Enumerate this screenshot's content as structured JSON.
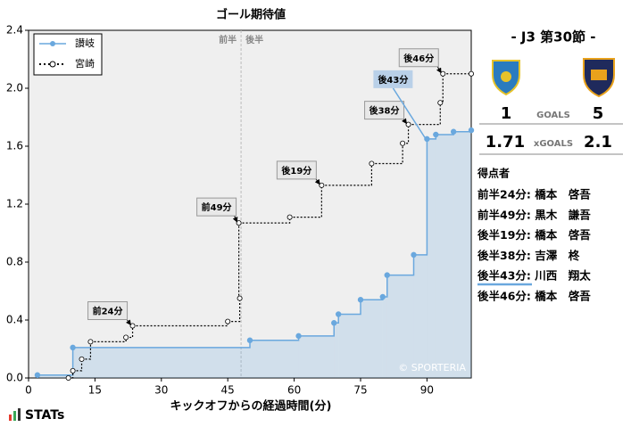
{
  "chart_data": {
    "type": "step",
    "title": "ゴール期待値",
    "x_label": "キックオフからの経過時間(分)",
    "xlim": [
      0,
      100
    ],
    "ylim": [
      0,
      2.4
    ],
    "xticks": [
      0,
      15,
      30,
      45,
      60,
      75,
      90
    ],
    "yticks": [
      {
        "value": 0,
        "label": "0.0"
      },
      {
        "value": 0.4,
        "label": "0.4"
      },
      {
        "value": 0.8,
        "label": "0.8"
      },
      {
        "value": 1.2,
        "label": "1.2"
      },
      {
        "value": 1.6,
        "label": "1.6"
      },
      {
        "value": 2.0,
        "label": "2.0"
      },
      {
        "value": 2.4,
        "label": "2.4"
      }
    ],
    "grid": false,
    "halftime": {
      "x": 48,
      "labels": [
        "前半",
        "後半"
      ]
    },
    "series": [
      {
        "name": "讃岐",
        "color": "#6aa8de",
        "area": true,
        "x": [
          2,
          10,
          50,
          61,
          69,
          70,
          75,
          80,
          81,
          87,
          90,
          92,
          96,
          100
        ],
        "values": [
          0.02,
          0.21,
          0.26,
          0.29,
          0.38,
          0.44,
          0.54,
          0.56,
          0.71,
          0.85,
          1.65,
          1.68,
          1.7,
          1.71
        ]
      },
      {
        "name": "宮崎",
        "color": "#000000",
        "area": false,
        "x": [
          9,
          10,
          12,
          14,
          22,
          23.5,
          45,
          47.7,
          47.5,
          59,
          66.2,
          77.5,
          84.5,
          85.8,
          93,
          93.6,
          100
        ],
        "values": [
          0.0,
          0.05,
          0.13,
          0.25,
          0.28,
          0.36,
          0.39,
          0.55,
          1.07,
          1.11,
          1.33,
          1.48,
          1.62,
          1.75,
          1.9,
          2.1,
          2.1
        ]
      }
    ],
    "annotations": [
      {
        "text": "前24分",
        "x": 23.5,
        "y": 0.36,
        "color": "#e8e8e8"
      },
      {
        "text": "前49分",
        "x": 47.5,
        "y": 1.07,
        "color": "#e8e8e8"
      },
      {
        "text": "後19分",
        "x": 66.2,
        "y": 1.33,
        "color": "#e8e8e8"
      },
      {
        "text": "後38分",
        "x": 85.8,
        "y": 1.75,
        "color": "#e8e8e8"
      },
      {
        "text": "後43分",
        "x": 90,
        "y": 1.65,
        "color": "#b9d0e8"
      },
      {
        "text": "後46分",
        "x": 93.6,
        "y": 2.1,
        "color": "#e8e8e8"
      }
    ],
    "watermark": "© SPORTERIA"
  },
  "panel": {
    "round": "- J3 第30節 -",
    "home_goals": "1",
    "away_goals": "5",
    "goals_label": "GOALS",
    "home_xg": "1.71",
    "away_xg": "2.1",
    "xg_label": "xGOALS",
    "scorers_title": "得点者",
    "scorers": [
      "前半24分: 橋本　啓吾",
      "前半49分: 黒木　謙吾",
      "後半19分: 橋本　啓吾",
      "後半38分: 吉澤　柊",
      "後半43分: 川西　翔太",
      "後半46分: 橋本　啓吾"
    ]
  },
  "brand": "STATs"
}
